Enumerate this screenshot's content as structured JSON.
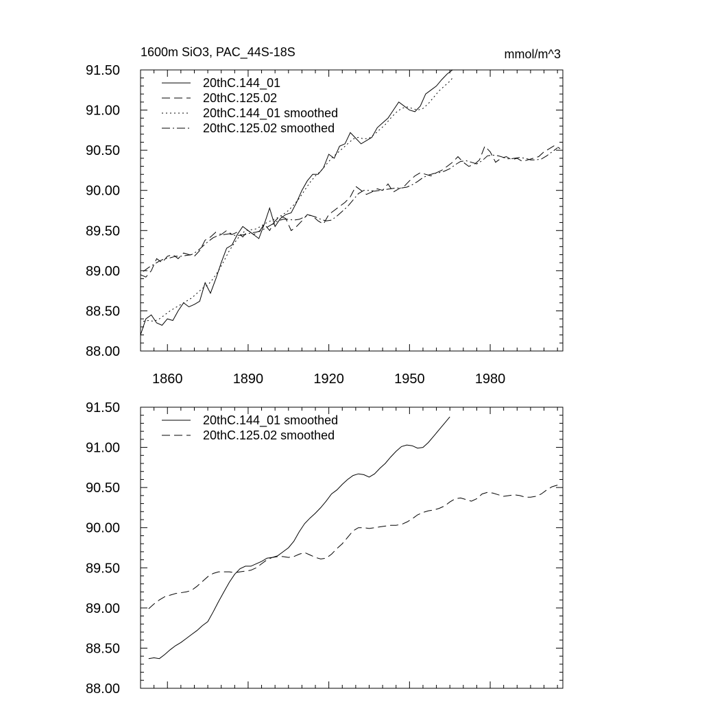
{
  "chart_data": [
    {
      "type": "line",
      "title": "1600m SiO3, PAC_44S-18S",
      "units": "mmol/m^3",
      "xlabel": "",
      "ylabel": "",
      "xlim": [
        1850,
        2007
      ],
      "ylim": [
        88.0,
        91.5
      ],
      "xticks": [
        1860,
        1890,
        1920,
        1950,
        1980
      ],
      "xtick_labels": [
        "1860",
        "1890",
        "1920",
        "1950",
        "1980"
      ],
      "yticks": [
        88.0,
        88.5,
        89.0,
        89.5,
        90.0,
        90.5,
        91.0,
        91.5
      ],
      "ytick_labels": [
        "88.00",
        "88.50",
        "89.00",
        "89.50",
        "90.00",
        "90.50",
        "91.00",
        "91.50"
      ],
      "grid": false,
      "legend_position": "top-left",
      "series": [
        {
          "name": "20thC.144_01",
          "dash": "solid",
          "x": [
            1850,
            1852,
            1854,
            1856,
            1858,
            1860,
            1862,
            1864,
            1866,
            1868,
            1870,
            1872,
            1874,
            1876,
            1878,
            1880,
            1882,
            1884,
            1886,
            1888,
            1890,
            1892,
            1894,
            1896,
            1898,
            1900,
            1902,
            1904,
            1906,
            1908,
            1910,
            1912,
            1914,
            1916,
            1918,
            1920,
            1922,
            1924,
            1926,
            1928,
            1930,
            1932,
            1934,
            1936,
            1938,
            1940,
            1942,
            1944,
            1946,
            1948,
            1950,
            1952,
            1954,
            1956,
            1958,
            1960,
            1962,
            1964,
            1966,
            1967
          ],
          "y": [
            88.2,
            88.4,
            88.45,
            88.35,
            88.32,
            88.4,
            88.38,
            88.5,
            88.6,
            88.55,
            88.58,
            88.62,
            88.85,
            88.72,
            88.9,
            89.1,
            89.28,
            89.32,
            89.45,
            89.55,
            89.5,
            89.45,
            89.4,
            89.58,
            89.78,
            89.55,
            89.65,
            89.7,
            89.72,
            89.85,
            90.0,
            90.12,
            90.2,
            90.2,
            90.28,
            90.45,
            90.4,
            90.55,
            90.58,
            90.72,
            90.65,
            90.58,
            90.62,
            90.66,
            90.78,
            90.84,
            90.9,
            91.0,
            91.1,
            91.05,
            91.0,
            90.98,
            91.05,
            91.2,
            91.25,
            91.3,
            91.38,
            91.45,
            91.5,
            91.52
          ]
        },
        {
          "name": "20thC.125.02",
          "dash": "dashed",
          "x": [
            1850,
            1852,
            1854,
            1856,
            1858,
            1860,
            1862,
            1864,
            1866,
            1868,
            1870,
            1872,
            1874,
            1876,
            1878,
            1880,
            1882,
            1884,
            1886,
            1888,
            1890,
            1892,
            1894,
            1896,
            1898,
            1900,
            1902,
            1904,
            1906,
            1908,
            1910,
            1912,
            1914,
            1916,
            1918,
            1920,
            1922,
            1924,
            1926,
            1928,
            1930,
            1932,
            1934,
            1936,
            1938,
            1940,
            1942,
            1944,
            1946,
            1948,
            1950,
            1952,
            1954,
            1956,
            1958,
            1960,
            1962,
            1964,
            1966,
            1968,
            1970,
            1972,
            1974,
            1976,
            1978,
            1980,
            1982,
            1984,
            1986,
            1988,
            1990,
            1992,
            1994,
            1996,
            1998,
            2000,
            2002,
            2004,
            2006
          ],
          "y": [
            88.95,
            88.92,
            89.0,
            89.15,
            89.1,
            89.18,
            89.2,
            89.15,
            89.22,
            89.2,
            89.18,
            89.25,
            89.38,
            89.42,
            89.48,
            89.45,
            89.5,
            89.45,
            89.48,
            89.42,
            89.5,
            89.45,
            89.48,
            89.58,
            89.5,
            89.62,
            89.68,
            89.65,
            89.5,
            89.55,
            89.62,
            89.7,
            89.68,
            89.62,
            89.58,
            89.7,
            89.75,
            89.8,
            89.85,
            89.92,
            90.05,
            90.0,
            89.95,
            89.98,
            90.02,
            90.0,
            90.08,
            89.98,
            90.02,
            90.05,
            90.12,
            90.18,
            90.22,
            90.2,
            90.18,
            90.22,
            90.25,
            90.3,
            90.35,
            90.42,
            90.35,
            90.3,
            90.32,
            90.38,
            90.55,
            90.48,
            90.35,
            90.4,
            90.42,
            90.38,
            90.4,
            90.36,
            90.38,
            90.4,
            90.42,
            90.48,
            90.52,
            90.56,
            90.52
          ]
        },
        {
          "name": "20thC.144_01 smoothed",
          "dash": "dotted",
          "x": [
            1851,
            1853,
            1855,
            1857,
            1859,
            1861,
            1863,
            1865,
            1867,
            1869,
            1871,
            1873,
            1875,
            1877,
            1879,
            1881,
            1883,
            1885,
            1887,
            1889,
            1891,
            1893,
            1895,
            1897,
            1899,
            1901,
            1903,
            1905,
            1907,
            1909,
            1911,
            1913,
            1915,
            1917,
            1919,
            1921,
            1923,
            1925,
            1927,
            1929,
            1931,
            1933,
            1935,
            1937,
            1939,
            1941,
            1943,
            1945,
            1947,
            1949,
            1951,
            1953,
            1955,
            1957,
            1959,
            1961,
            1963,
            1965,
            1966
          ],
          "y": [
            88.37,
            88.38,
            88.37,
            88.4,
            88.45,
            88.5,
            88.54,
            88.58,
            88.62,
            88.66,
            88.72,
            88.78,
            88.82,
            88.9,
            89.0,
            89.12,
            89.25,
            89.35,
            89.44,
            89.5,
            89.51,
            89.52,
            89.56,
            89.6,
            89.63,
            89.66,
            89.7,
            89.75,
            89.82,
            89.9,
            90.0,
            90.1,
            90.18,
            90.24,
            90.32,
            90.4,
            90.46,
            90.52,
            90.58,
            90.64,
            90.66,
            90.64,
            90.65,
            90.7,
            90.76,
            90.82,
            90.9,
            90.97,
            91.02,
            91.04,
            91.02,
            91.0,
            91.02,
            91.08,
            91.16,
            91.24,
            91.3,
            91.36,
            91.4
          ]
        },
        {
          "name": "20thC.125.02 smoothed",
          "dash": "dashdot",
          "x": [
            1851,
            1853,
            1855,
            1857,
            1859,
            1861,
            1863,
            1865,
            1867,
            1869,
            1871,
            1873,
            1875,
            1877,
            1879,
            1881,
            1883,
            1885,
            1887,
            1889,
            1891,
            1893,
            1895,
            1897,
            1899,
            1901,
            1903,
            1905,
            1907,
            1909,
            1911,
            1913,
            1915,
            1917,
            1919,
            1921,
            1923,
            1925,
            1927,
            1929,
            1931,
            1933,
            1935,
            1937,
            1939,
            1941,
            1943,
            1945,
            1947,
            1949,
            1951,
            1953,
            1955,
            1957,
            1959,
            1961,
            1963,
            1965,
            1967,
            1969,
            1971,
            1973,
            1975,
            1977,
            1979,
            1981,
            1983,
            1985,
            1987,
            1989,
            1991,
            1993,
            1995,
            1997,
            1999,
            2001,
            2003,
            2005
          ],
          "y": [
            88.99,
            89.04,
            89.08,
            89.12,
            89.15,
            89.16,
            89.18,
            89.18,
            89.19,
            89.2,
            89.24,
            89.3,
            89.36,
            89.41,
            89.44,
            89.45,
            89.46,
            89.44,
            89.44,
            89.45,
            89.47,
            89.48,
            89.5,
            89.54,
            89.58,
            89.62,
            89.64,
            89.64,
            89.63,
            89.64,
            89.67,
            89.69,
            89.67,
            89.64,
            89.62,
            89.63,
            89.68,
            89.74,
            89.8,
            89.88,
            89.96,
            90.0,
            90.0,
            89.99,
            90.0,
            90.01,
            90.02,
            90.03,
            90.03,
            90.04,
            90.07,
            90.11,
            90.16,
            90.19,
            90.21,
            90.22,
            90.24,
            90.27,
            90.32,
            90.36,
            90.37,
            90.35,
            90.33,
            90.37,
            90.43,
            90.44,
            90.43,
            90.41,
            90.39,
            90.4,
            90.41,
            90.4,
            90.38,
            90.38,
            90.39,
            90.43,
            90.48,
            90.53
          ]
        }
      ]
    },
    {
      "type": "line",
      "title": "",
      "xlabel": "",
      "ylabel": "",
      "xlim": [
        1850,
        2007
      ],
      "ylim": [
        88.0,
        91.5
      ],
      "xticks": [
        1860,
        1890,
        1920,
        1950,
        1980
      ],
      "yticks": [
        88.0,
        88.5,
        89.0,
        89.5,
        90.0,
        90.5,
        91.0,
        91.5
      ],
      "ytick_labels": [
        "88.00",
        "88.50",
        "89.00",
        "89.50",
        "90.00",
        "90.50",
        "91.00",
        "91.50"
      ],
      "grid": false,
      "legend_position": "top-left",
      "series": [
        {
          "name": "20thC.144_01 smoothed",
          "dash": "solid",
          "x": [
            1853,
            1855,
            1857,
            1859,
            1861,
            1863,
            1865,
            1867,
            1869,
            1871,
            1873,
            1875,
            1877,
            1879,
            1881,
            1883,
            1885,
            1887,
            1889,
            1891,
            1893,
            1895,
            1897,
            1899,
            1901,
            1903,
            1905,
            1907,
            1909,
            1911,
            1913,
            1915,
            1917,
            1919,
            1921,
            1923,
            1925,
            1927,
            1929,
            1931,
            1933,
            1935,
            1937,
            1939,
            1941,
            1943,
            1945,
            1947,
            1949,
            1951,
            1953,
            1955,
            1957,
            1959,
            1961,
            1963,
            1965
          ],
          "y": [
            88.37,
            88.38,
            88.37,
            88.42,
            88.48,
            88.53,
            88.57,
            88.62,
            88.67,
            88.72,
            88.78,
            88.83,
            88.95,
            89.08,
            89.2,
            89.32,
            89.42,
            89.49,
            89.52,
            89.52,
            89.55,
            89.58,
            89.62,
            89.63,
            89.65,
            89.7,
            89.75,
            89.83,
            89.95,
            90.05,
            90.12,
            90.18,
            90.25,
            90.33,
            90.42,
            90.47,
            90.54,
            90.6,
            90.65,
            90.67,
            90.66,
            90.63,
            90.67,
            90.74,
            90.8,
            90.88,
            90.95,
            91.01,
            91.03,
            91.02,
            90.99,
            91.0,
            91.06,
            91.14,
            91.22,
            91.3,
            91.38
          ]
        },
        {
          "name": "20thC.125.02 smoothed",
          "dash": "dashed",
          "x": [
            1853,
            1855,
            1857,
            1859,
            1861,
            1863,
            1865,
            1867,
            1869,
            1871,
            1873,
            1875,
            1877,
            1879,
            1881,
            1883,
            1885,
            1887,
            1889,
            1891,
            1893,
            1895,
            1897,
            1899,
            1901,
            1903,
            1905,
            1907,
            1909,
            1911,
            1913,
            1915,
            1917,
            1919,
            1921,
            1923,
            1925,
            1927,
            1929,
            1931,
            1933,
            1935,
            1937,
            1939,
            1941,
            1943,
            1945,
            1947,
            1949,
            1951,
            1953,
            1955,
            1957,
            1959,
            1961,
            1963,
            1965,
            1967,
            1969,
            1971,
            1973,
            1975,
            1977,
            1979,
            1981,
            1983,
            1985,
            1987,
            1989,
            1991,
            1993,
            1995,
            1997,
            1999,
            2001,
            2003,
            2005
          ],
          "y": [
            88.99,
            89.05,
            89.1,
            89.14,
            89.16,
            89.18,
            89.19,
            89.2,
            89.22,
            89.27,
            89.33,
            89.39,
            89.43,
            89.45,
            89.45,
            89.45,
            89.44,
            89.45,
            89.46,
            89.47,
            89.5,
            89.55,
            89.6,
            89.63,
            89.64,
            89.64,
            89.63,
            89.64,
            89.67,
            89.69,
            89.66,
            89.63,
            89.61,
            89.62,
            89.67,
            89.74,
            89.8,
            89.88,
            89.96,
            90.0,
            90.0,
            89.99,
            90.0,
            90.01,
            90.02,
            90.03,
            90.03,
            90.04,
            90.07,
            90.11,
            90.16,
            90.19,
            90.21,
            90.22,
            90.24,
            90.27,
            90.32,
            90.36,
            90.37,
            90.35,
            90.33,
            90.36,
            90.42,
            90.44,
            90.43,
            90.41,
            90.39,
            90.4,
            90.41,
            90.4,
            90.38,
            90.38,
            90.39,
            90.42,
            90.47,
            90.51,
            90.53
          ]
        }
      ]
    }
  ]
}
